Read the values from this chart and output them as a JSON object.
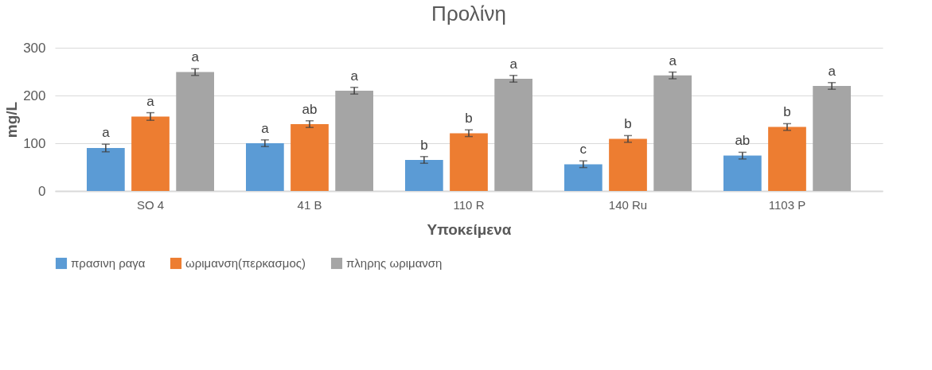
{
  "chart_data": {
    "type": "bar",
    "title": "Προλίνη",
    "xlabel": "Υποκείμενα",
    "ylabel": "mg/L",
    "categories": [
      "SO 4",
      "41 B",
      "110 R",
      "140 Ru",
      "1103 P"
    ],
    "series": [
      {
        "name": "πρασινη ραγα",
        "color": "#5b9bd5",
        "values": [
          90,
          100,
          65,
          56,
          74
        ],
        "errors": [
          8,
          7,
          7,
          7,
          7
        ],
        "value_labels": [
          "a",
          "a",
          "b",
          "c",
          "ab"
        ]
      },
      {
        "name": "ωριμανση(περκασμος)",
        "color": "#ed7d31",
        "values": [
          156,
          140,
          121,
          109,
          134
        ],
        "errors": [
          8,
          7,
          7,
          7,
          7
        ],
        "value_labels": [
          "a",
          "ab",
          "b",
          "b",
          "b"
        ]
      },
      {
        "name": "πληρης ωριμανση",
        "color": "#a5a5a5",
        "values": [
          249,
          210,
          235,
          242,
          220
        ],
        "errors": [
          7,
          7,
          7,
          7,
          7
        ],
        "value_labels": [
          "a",
          "a",
          "a",
          "a",
          "a"
        ]
      }
    ],
    "ylim": [
      0,
      300
    ],
    "yticks": [
      0,
      100,
      200,
      300
    ],
    "grid": "y",
    "legend": "bottom"
  }
}
